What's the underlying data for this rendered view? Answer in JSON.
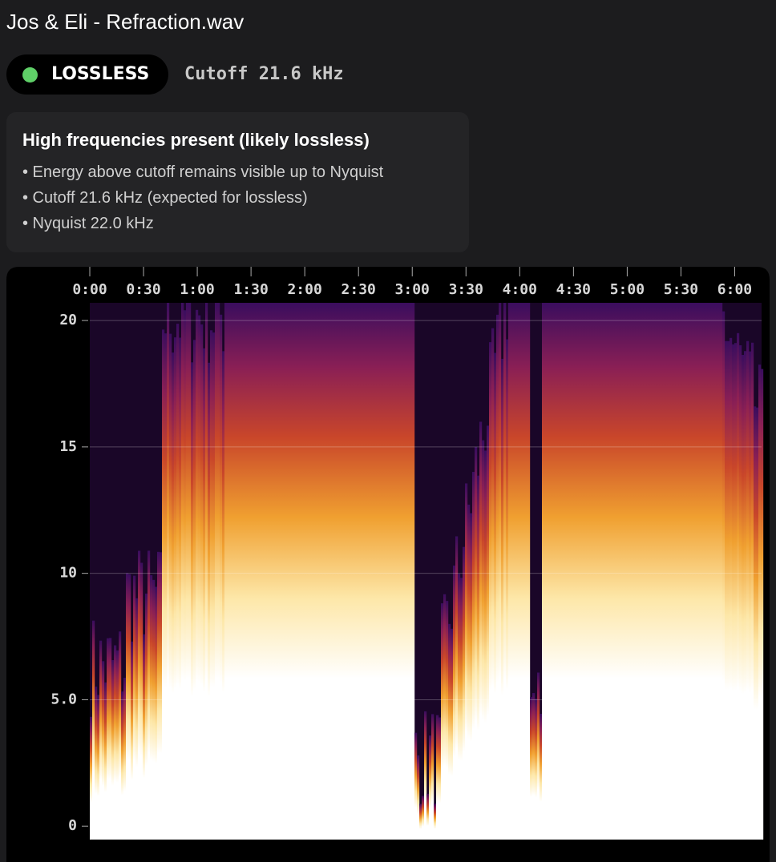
{
  "header": {
    "title": "Jos & Eli - Refraction.wav"
  },
  "badge": {
    "status": "LOSSLESS",
    "cutoff": "Cutoff 21.6 kHz"
  },
  "panel": {
    "title": "High frequencies present (likely lossless)",
    "bullets": [
      "• Energy above cutoff remains visible up to Nyquist",
      "• Cutoff 21.6 kHz (expected for lossless)",
      "• Nyquist 22.0 kHz"
    ]
  },
  "spectrogram": {
    "xlim": [
      0,
      375
    ],
    "xticks": [
      {
        "value": 0,
        "label": "0:00"
      },
      {
        "value": 30,
        "label": "0:30"
      },
      {
        "value": 60,
        "label": "1:00"
      },
      {
        "value": 90,
        "label": "1:30"
      },
      {
        "value": 120,
        "label": "2:00"
      },
      {
        "value": 150,
        "label": "2:30"
      },
      {
        "value": 180,
        "label": "3:00"
      },
      {
        "value": 210,
        "label": "3:30"
      },
      {
        "value": 240,
        "label": "4:00"
      },
      {
        "value": 270,
        "label": "4:30"
      },
      {
        "value": 300,
        "label": "5:00"
      },
      {
        "value": 330,
        "label": "5:30"
      },
      {
        "value": 360,
        "label": "6:00"
      }
    ],
    "ylim": [
      -0.5,
      20.7
    ],
    "yticks": [
      0,
      {
        "value": 5,
        "label": "5.0"
      },
      10,
      15,
      20
    ]
  }
}
